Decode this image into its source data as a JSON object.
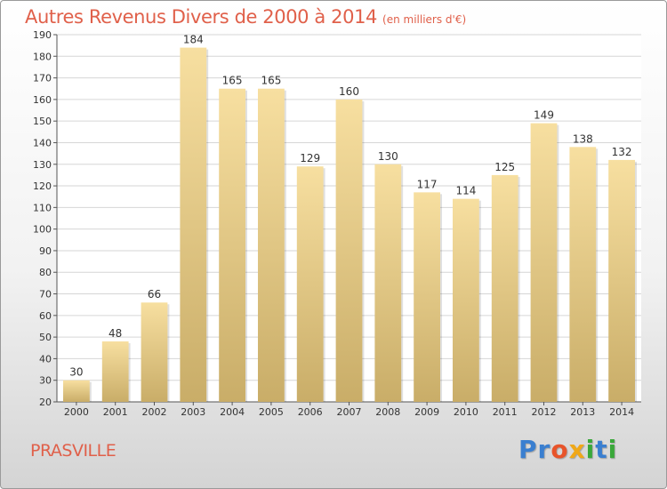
{
  "header": {
    "title": "Autres Revenus Divers de 2000 à 2014",
    "unit": "(en milliers d'€)"
  },
  "footer": {
    "commune": "PRASVILLE",
    "logo": {
      "letters": [
        "P",
        "r",
        "o",
        "x",
        "i",
        "t",
        "i"
      ]
    }
  },
  "colors": {
    "title": "#e0604a",
    "bar_top": "#f7dfa0",
    "bar_bottom": "#c9ad68",
    "grid": "#d6d6d6",
    "logo": [
      "#3a7fd0",
      "#3a7fd0",
      "#e8542a",
      "#f0a818",
      "#3aa83a",
      "#3a7fd0",
      "#3aa83a"
    ]
  },
  "chart_data": {
    "type": "bar",
    "categories": [
      "2000",
      "2001",
      "2002",
      "2003",
      "2004",
      "2005",
      "2006",
      "2007",
      "2008",
      "2009",
      "2010",
      "2011",
      "2012",
      "2013",
      "2014"
    ],
    "values": [
      30,
      48,
      66,
      184,
      165,
      165,
      129,
      160,
      130,
      117,
      114,
      125,
      149,
      138,
      132
    ],
    "ylim": [
      20,
      190
    ],
    "yticks": [
      20,
      30,
      40,
      50,
      60,
      70,
      80,
      90,
      100,
      110,
      120,
      130,
      140,
      150,
      160,
      170,
      180,
      190
    ],
    "grid": true,
    "show_value_labels": true
  }
}
